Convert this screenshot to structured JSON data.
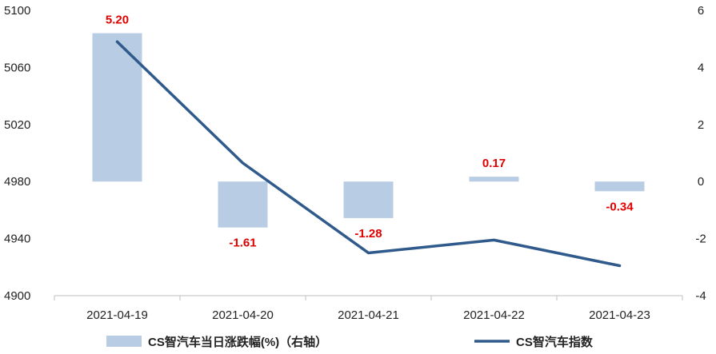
{
  "chart_data": {
    "type": "bar+line",
    "categories": [
      "2021-04-19",
      "2021-04-20",
      "2021-04-21",
      "2021-04-22",
      "2021-04-23"
    ],
    "series": [
      {
        "name": "CS智汽车当日涨跌幅(%)（右轴）",
        "type": "bar",
        "axis": "right",
        "values": [
          5.2,
          -1.61,
          -1.28,
          0.17,
          -0.34
        ],
        "labels": [
          "5.20",
          "-1.61",
          "-1.28",
          "0.17",
          "-0.34"
        ],
        "color": "#b8cce4"
      },
      {
        "name": "CS智汽车指数",
        "type": "line",
        "axis": "left",
        "values": [
          5078,
          4993,
          4930,
          4939,
          4921
        ],
        "color": "#2f5a8b"
      }
    ],
    "y_left": {
      "lim": [
        4900,
        5100
      ],
      "ticks": [
        "4900",
        "4940",
        "4980",
        "5020",
        "5060",
        "5100"
      ]
    },
    "y_right": {
      "lim": [
        -4,
        6
      ],
      "ticks": [
        "-4",
        "-2",
        "0",
        "2",
        "4",
        "6"
      ]
    },
    "label_color": "#e00000",
    "grid": false,
    "legend_position": "bottom"
  }
}
